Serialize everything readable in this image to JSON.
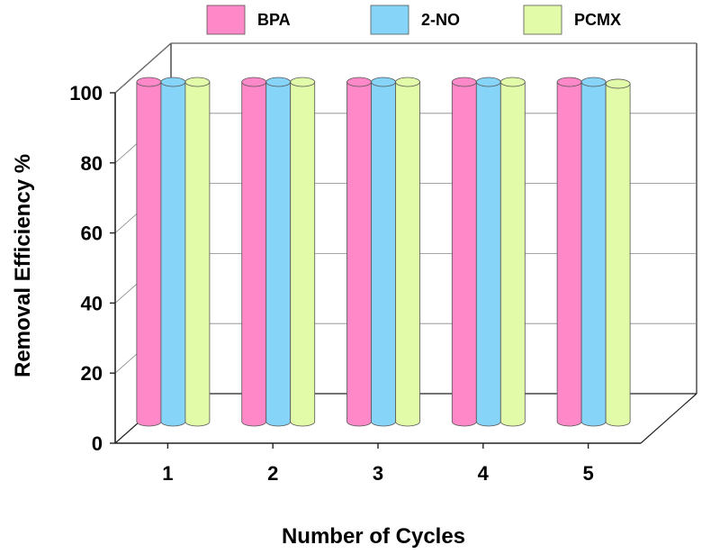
{
  "chart_data": {
    "type": "bar",
    "style": "3d-cylinder",
    "categories": [
      "1",
      "2",
      "3",
      "4",
      "5"
    ],
    "series": [
      {
        "name": "BPA",
        "color": "#ff88c8",
        "values": [
          100,
          100,
          100,
          100,
          100
        ]
      },
      {
        "name": "2-NO",
        "color": "#86d4f8",
        "values": [
          100,
          100,
          100,
          100,
          100
        ]
      },
      {
        "name": "PCMX",
        "color": "#e2fba8",
        "values": [
          100,
          100,
          100,
          100,
          99.5
        ]
      }
    ],
    "xlabel": "Number of Cycles",
    "ylabel": "Removal Efficiency %",
    "ylim": [
      0,
      100
    ],
    "yticks": [
      0,
      20,
      40,
      60,
      80,
      100
    ],
    "grid": true,
    "legend_position": "top"
  }
}
